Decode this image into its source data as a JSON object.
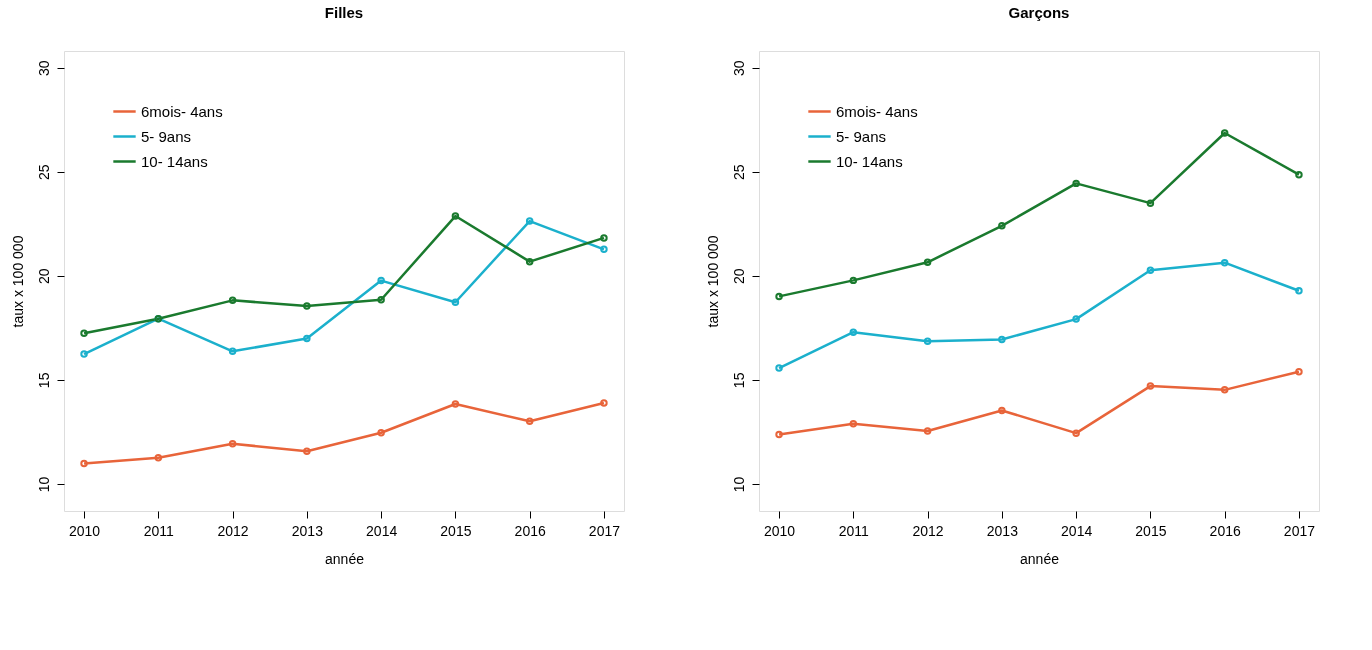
{
  "chart_data": [
    {
      "type": "line",
      "title": "Filles",
      "xlabel": "année",
      "ylabel": "taux x 100 000",
      "x": [
        2010,
        2011,
        2012,
        2013,
        2014,
        2015,
        2016,
        2017
      ],
      "xlim": [
        2009.73,
        2017.27
      ],
      "xticks": [
        2010,
        2011,
        2012,
        2013,
        2014,
        2015,
        2016,
        2017
      ],
      "ylim": [
        8.7,
        30.8
      ],
      "yticks": [
        10,
        15,
        20,
        25,
        30
      ],
      "grid": false,
      "legend": "top left",
      "marker": "circle",
      "line_style": "solid",
      "series": [
        {
          "name": "6mois- 4ans",
          "color": "#e8643a",
          "values": [
            10.98,
            11.26,
            11.93,
            11.57,
            12.46,
            13.84,
            13.01,
            13.89
          ]
        },
        {
          "name": "5- 9ans",
          "color": "#1bb0cc",
          "values": [
            16.24,
            17.94,
            16.37,
            16.99,
            19.77,
            18.73,
            22.63,
            21.27
          ]
        },
        {
          "name": "10- 14ans",
          "color": "#1a7a2e",
          "values": [
            17.24,
            17.94,
            18.82,
            18.55,
            18.85,
            22.87,
            20.68,
            21.82
          ]
        }
      ]
    },
    {
      "type": "line",
      "title": "Garçons",
      "xlabel": "année",
      "ylabel": "taux x 100 000",
      "x": [
        2010,
        2011,
        2012,
        2013,
        2014,
        2015,
        2016,
        2017
      ],
      "xlim": [
        2009.73,
        2017.27
      ],
      "xticks": [
        2010,
        2011,
        2012,
        2013,
        2014,
        2015,
        2016,
        2017
      ],
      "ylim": [
        8.7,
        30.8
      ],
      "yticks": [
        10,
        15,
        20,
        25,
        30
      ],
      "grid": false,
      "legend": "top left",
      "marker": "circle",
      "line_style": "solid",
      "series": [
        {
          "name": "6mois- 4ans",
          "color": "#e8643a",
          "values": [
            12.38,
            12.89,
            12.54,
            13.53,
            12.44,
            14.7,
            14.52,
            15.39
          ]
        },
        {
          "name": "5- 9ans",
          "color": "#1bb0cc",
          "values": [
            15.57,
            17.29,
            16.85,
            16.94,
            17.92,
            20.27,
            20.63,
            19.28
          ]
        },
        {
          "name": "10- 14ans",
          "color": "#1a7a2e",
          "values": [
            19.01,
            19.78,
            20.65,
            22.4,
            24.44,
            23.49,
            26.86,
            24.86
          ]
        }
      ]
    }
  ]
}
